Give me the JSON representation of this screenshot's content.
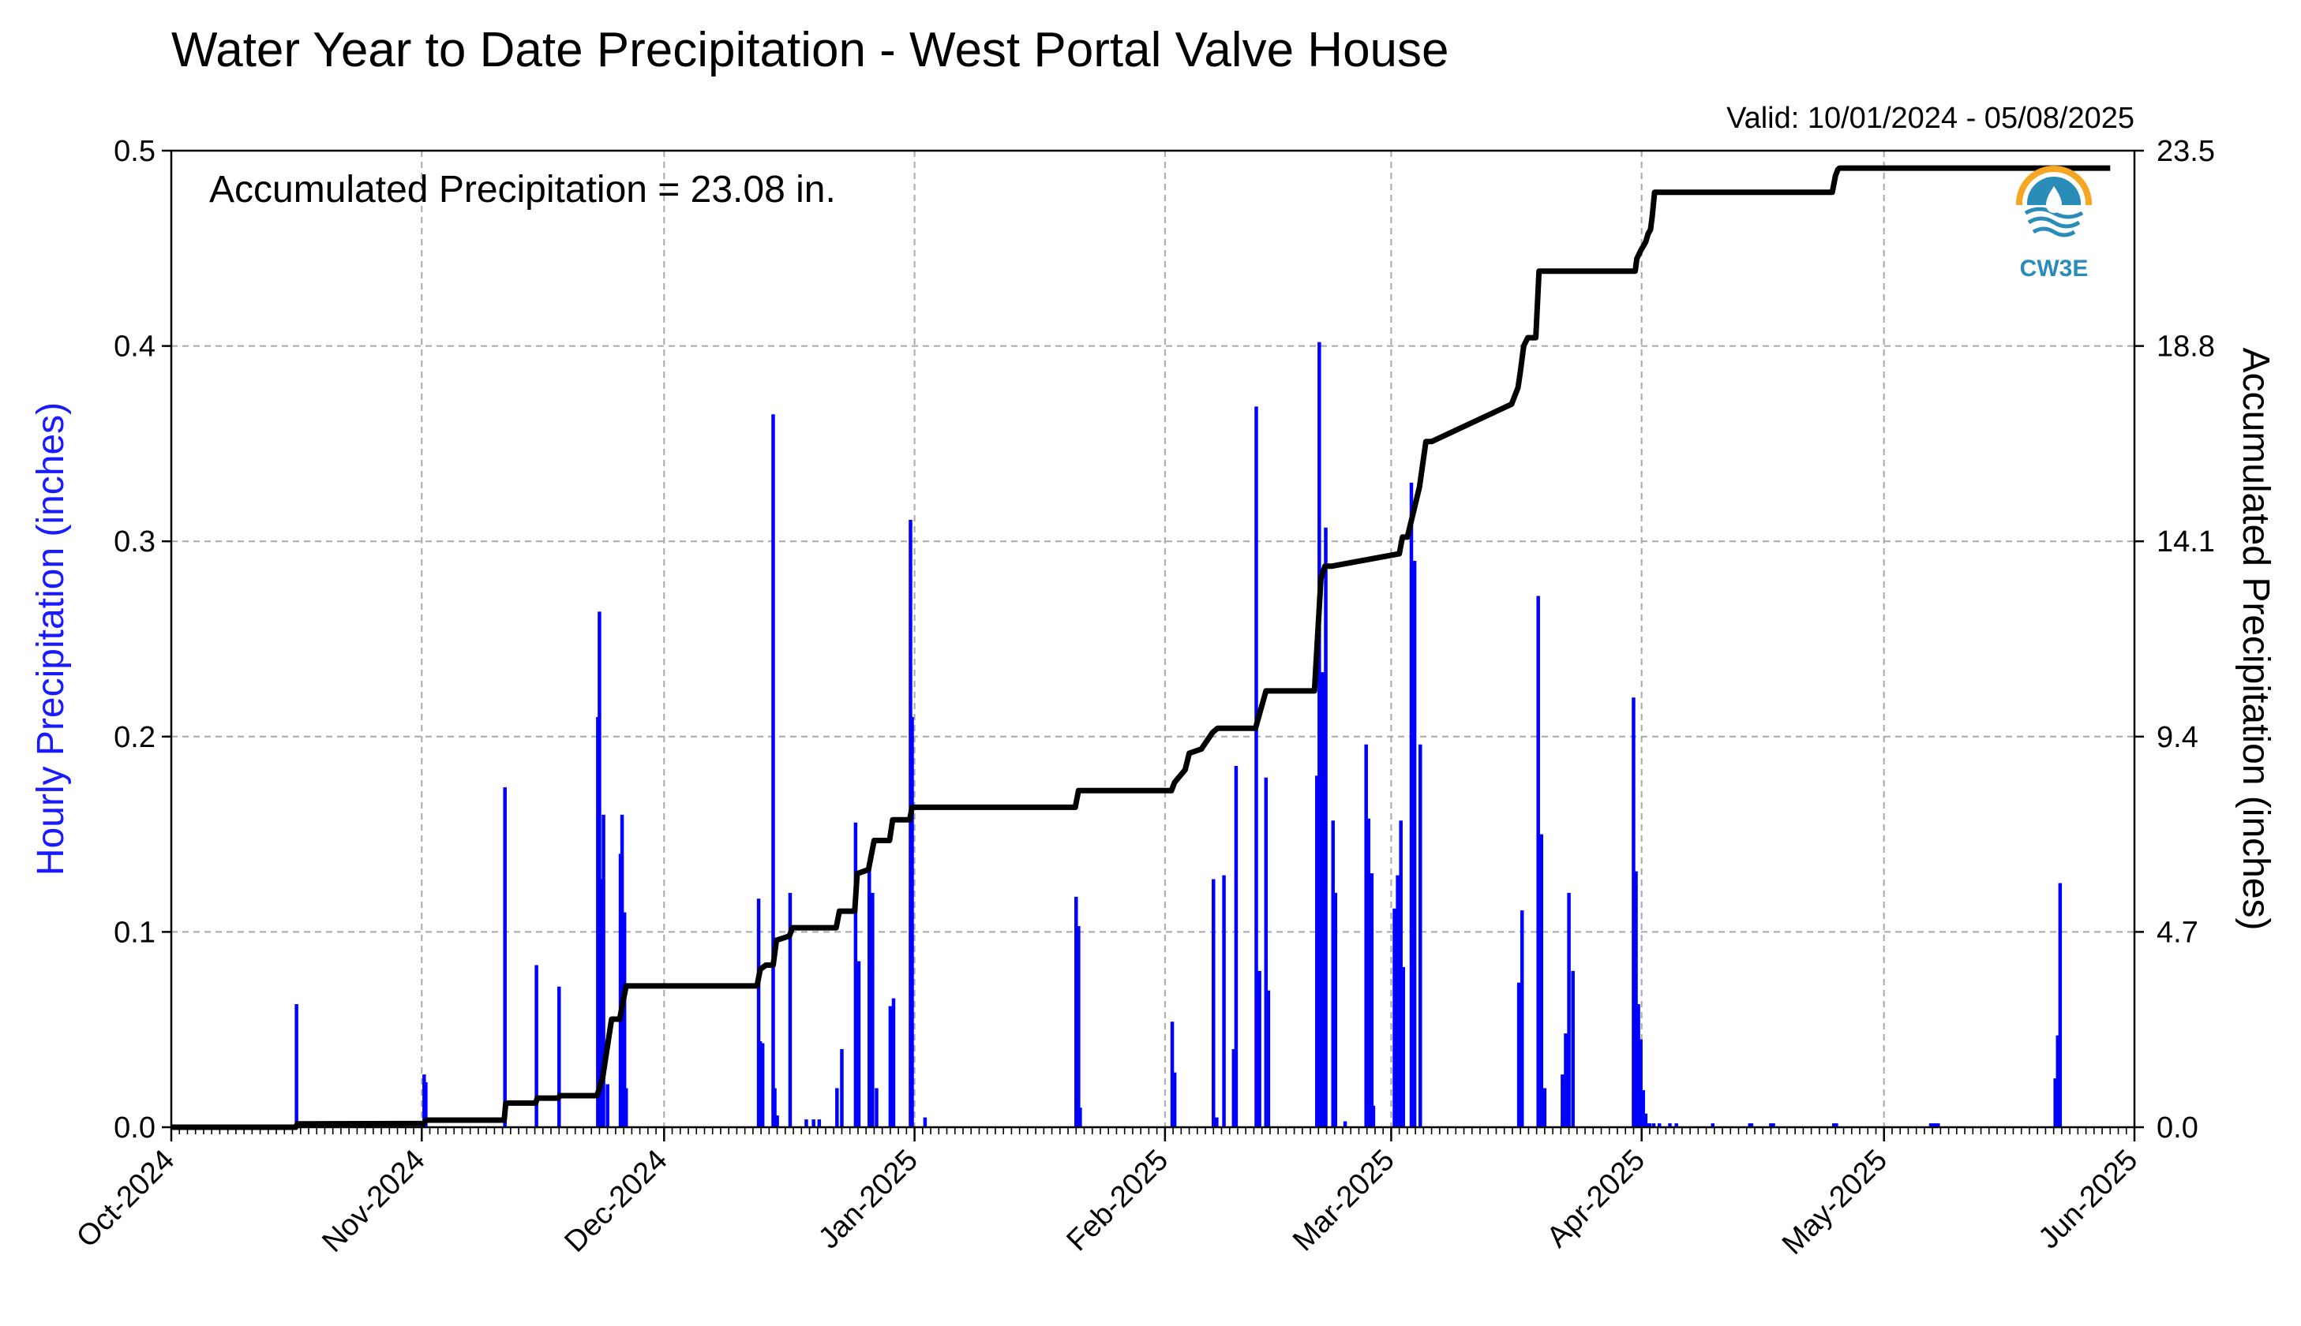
{
  "chart_data": {
    "type": "bar+line",
    "title": "Water Year to Date Precipitation - West Portal Valve House",
    "valid": "Valid: 10/01/2024 - 05/08/2025",
    "annotation": "Accumulated Precipitation = 23.08 in.",
    "logo": "CW3E",
    "ylabel_left": "Hourly Precipitation (inches)",
    "ylabel_right": "Accumulated Precipitation (inches)",
    "y_left_ticks": [
      "0.0",
      "0.1",
      "0.2",
      "0.3",
      "0.4",
      "0.5"
    ],
    "y_right_ticks": [
      "0.0",
      "4.7",
      "9.4",
      "14.1",
      "18.8",
      "23.5"
    ],
    "ylim_left": [
      0,
      0.5
    ],
    "ylim_right": [
      0,
      23.5
    ],
    "x_ticks": [
      "Oct-2024",
      "Nov-2024",
      "Dec-2024",
      "Jan-2025",
      "Feb-2025",
      "Mar-2025",
      "Apr-2025",
      "May-2025",
      "Jun-2025"
    ],
    "xlim_days": [
      0,
      243
    ],
    "grid": true,
    "colors": {
      "hourly": "#0000ff",
      "accumulated": "#000000",
      "logo": "#2a8cb8",
      "logo_accent": "#f5a623"
    },
    "hourly": {
      "name": "Hourly Precipitation",
      "day": [
        15.5,
        31.3,
        31.5,
        41.3,
        45.2,
        48.0,
        52.8,
        53.0,
        53.3,
        53.5,
        54.0,
        55.6,
        55.8,
        56.1,
        56.3,
        72.7,
        72.9,
        73.2,
        74.5,
        74.7,
        75.0,
        76.6,
        78.6,
        79.5,
        80.2,
        82.4,
        83.0,
        84.7,
        85.1,
        86.4,
        86.8,
        87.3,
        89.0,
        89.4,
        91.5,
        91.7,
        93.3,
        112.0,
        112.3,
        112.5,
        123.9,
        124.2,
        129.0,
        129.4,
        130.3,
        131.5,
        131.8,
        134.3,
        134.7,
        135.5,
        135.8,
        141.8,
        142.1,
        142.5,
        142.9,
        143.8,
        144.1,
        145.3,
        147.9,
        148.2,
        148.6,
        148.8,
        151.4,
        151.8,
        152.2,
        152.5,
        153.5,
        153.9,
        154.6,
        166.8,
        167.2,
        169.2,
        169.6,
        170.0,
        172.2,
        172.6,
        173.0,
        173.5,
        181.0,
        181.3,
        181.6,
        181.9,
        182.2,
        182.5,
        182.8,
        183.0,
        183.5,
        184.2,
        185.5,
        186.3,
        190.8,
        195.4,
        195.6,
        198.0,
        198.3,
        205.8,
        206.1,
        217.8,
        218.1,
        218.4,
        218.7,
        233.2,
        233.5,
        233.8
      ],
      "value": [
        0.063,
        0.027,
        0.023,
        0.174,
        0.083,
        0.072,
        0.21,
        0.264,
        0.127,
        0.16,
        0.022,
        0.14,
        0.16,
        0.11,
        0.02,
        0.117,
        0.044,
        0.043,
        0.365,
        0.02,
        0.006,
        0.12,
        0.004,
        0.004,
        0.004,
        0.02,
        0.04,
        0.156,
        0.085,
        0.136,
        0.12,
        0.02,
        0.062,
        0.066,
        0.311,
        0.21,
        0.005,
        0.118,
        0.103,
        0.01,
        0.054,
        0.028,
        0.127,
        0.005,
        0.129,
        0.04,
        0.185,
        0.369,
        0.08,
        0.179,
        0.07,
        0.18,
        0.402,
        0.233,
        0.307,
        0.157,
        0.12,
        0.003,
        0.196,
        0.158,
        0.13,
        0.011,
        0.112,
        0.129,
        0.157,
        0.082,
        0.33,
        0.29,
        0.196,
        0.074,
        0.111,
        0.272,
        0.15,
        0.02,
        0.027,
        0.048,
        0.12,
        0.08,
        0.22,
        0.131,
        0.063,
        0.045,
        0.019,
        0.007,
        0.002,
        0.002,
        0.002,
        0.002,
        0.002,
        0.002,
        0.002,
        0.002,
        0.002,
        0.002,
        0.002,
        0.002,
        0.002,
        0.002,
        0.002,
        0.002,
        0.002,
        0.025,
        0.047,
        0.125,
        0.012
      ]
    },
    "accumulated": {
      "name": "Accumulated Precipitation",
      "day": [
        0,
        15.4,
        15.6,
        31.2,
        31.6,
        41.2,
        41.4,
        45.1,
        45.3,
        47.9,
        48.1,
        52.7,
        53.4,
        54.5,
        55.5,
        56.3,
        72.5,
        72.9,
        73.6,
        74.5,
        74.9,
        76.5,
        76.9,
        82.3,
        82.7,
        84.6,
        84.9,
        86.3,
        87.0,
        88.9,
        89.3,
        91.4,
        91.7,
        111.9,
        112.3,
        123.8,
        124.2,
        125.5,
        126.0,
        127.5,
        128.9,
        129.5,
        134.2,
        135.5,
        141.5,
        142.3,
        142.8,
        143.6,
        152.0,
        152.4,
        153.0,
        154.0,
        154.5,
        155.3,
        156.0,
        165.9,
        166.3,
        166.7,
        167.0,
        167.4,
        167.9,
        168.9,
        169.3,
        181.2,
        181.4,
        181.9,
        182.5,
        182.8,
        183.1,
        183.3,
        183.6,
        184.0,
        205.6,
        206.0,
        206.3,
        206.5,
        234.2,
        240.0
      ],
      "value": [
        0.0,
        0.0,
        0.08,
        0.09,
        0.17,
        0.17,
        0.58,
        0.58,
        0.7,
        0.7,
        0.76,
        0.76,
        1.2,
        2.6,
        2.6,
        3.4,
        3.4,
        3.8,
        3.9,
        3.9,
        4.5,
        4.6,
        4.8,
        4.8,
        5.2,
        5.2,
        6.1,
        6.2,
        6.9,
        6.9,
        7.4,
        7.4,
        7.7,
        7.7,
        8.1,
        8.1,
        8.3,
        8.6,
        9.0,
        9.1,
        9.5,
        9.6,
        9.6,
        10.5,
        10.5,
        13.2,
        13.5,
        13.5,
        13.8,
        14.2,
        14.2,
        15.0,
        15.4,
        16.5,
        16.5,
        17.4,
        17.6,
        17.8,
        18.2,
        18.8,
        19.0,
        19.0,
        20.6,
        20.6,
        20.9,
        21.1,
        21.3,
        21.5,
        21.6,
        21.9,
        22.5,
        22.5,
        22.5,
        22.9,
        23.05,
        23.08,
        23.08,
        23.08
      ]
    }
  }
}
